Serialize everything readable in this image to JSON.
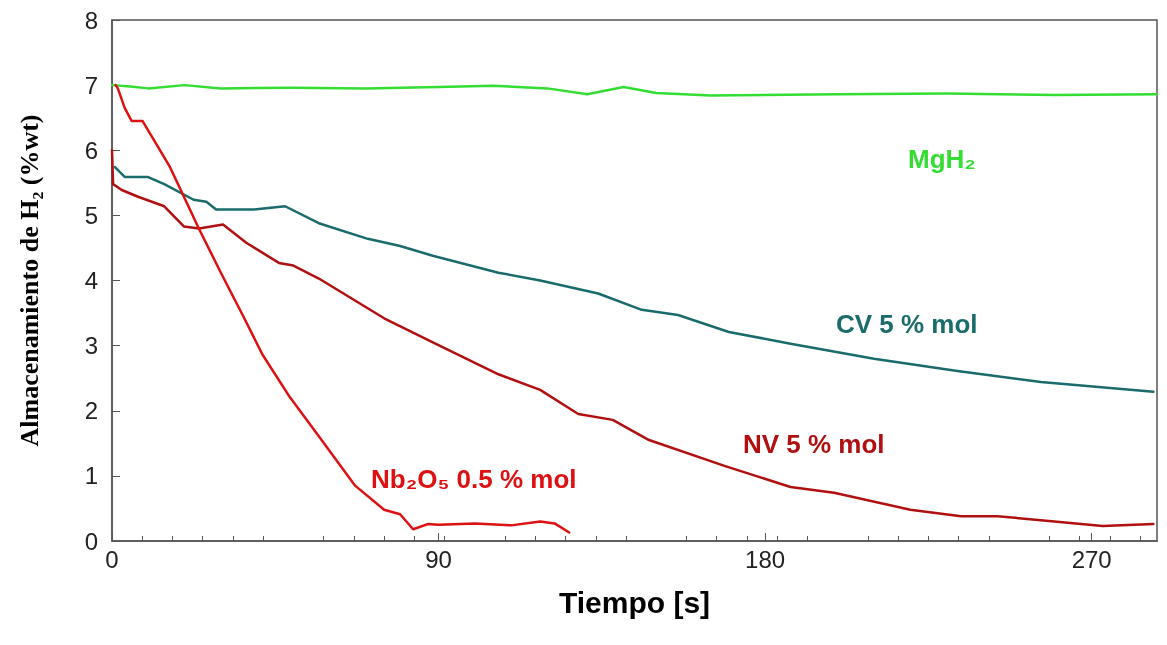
{
  "chart_data": {
    "type": "line",
    "xlabel": "Tiempo [s]",
    "ylabel": "Almacenamiento de H₂ (%wt)",
    "xlim": [
      0,
      288
    ],
    "xticks": [
      0,
      90,
      180,
      270
    ],
    "ylim": [
      0,
      8
    ],
    "yticks": [
      0,
      1,
      2,
      3,
      4,
      5,
      6,
      7,
      8
    ],
    "grid": false,
    "legend": false,
    "marker": "none",
    "line_style": "solid",
    "series": [
      {
        "name": "MgH₂",
        "color": "#33dd33",
        "x": [
          0,
          5,
          10,
          20,
          30,
          50,
          70,
          90,
          105,
          120,
          131,
          141,
          150,
          165,
          200,
          230,
          260,
          288
        ],
        "values": [
          7.0,
          6.98,
          6.95,
          7.0,
          6.95,
          6.96,
          6.95,
          6.97,
          6.99,
          6.95,
          6.86,
          6.97,
          6.88,
          6.84,
          6.86,
          6.87,
          6.85,
          6.86
        ]
      },
      {
        "name": "CV 5 % mol",
        "color": "#1a6b6b",
        "x": [
          0.8,
          3.5,
          9.8,
          14.4,
          22.5,
          26,
          28.7,
          38.8,
          47.7,
          57,
          70.5,
          79.4,
          88.4,
          106.5,
          118,
          134,
          146,
          156,
          170,
          187,
          210,
          233,
          256,
          287
        ],
        "values": [
          5.74,
          5.59,
          5.59,
          5.48,
          5.24,
          5.21,
          5.09,
          5.09,
          5.14,
          4.88,
          4.64,
          4.53,
          4.38,
          4.12,
          4.0,
          3.8,
          3.55,
          3.47,
          3.21,
          3.03,
          2.8,
          2.61,
          2.44,
          2.29
        ]
      },
      {
        "name": "NV 5 % mol",
        "color": "#b01010",
        "x": [
          0,
          0.3,
          2.7,
          7,
          14.4,
          19.8,
          24,
          30.6,
          37,
          46,
          50,
          57,
          75,
          88,
          106.5,
          118,
          128.5,
          138,
          148,
          169,
          187,
          199,
          220,
          234,
          244,
          256,
          273,
          287
        ],
        "values": [
          6.0,
          5.48,
          5.39,
          5.29,
          5.14,
          4.83,
          4.8,
          4.86,
          4.58,
          4.27,
          4.23,
          4.03,
          3.42,
          3.06,
          2.56,
          2.32,
          1.95,
          1.86,
          1.55,
          1.15,
          0.83,
          0.74,
          0.48,
          0.38,
          0.38,
          0.32,
          0.23,
          0.26
        ]
      },
      {
        "name": "Nb₂O₅ 0.5 % mol",
        "color": "#dd1111",
        "x": [
          1,
          1.6,
          3.5,
          5.4,
          8.4,
          16,
          24,
          30,
          36,
          41.5,
          49,
          57,
          67,
          75,
          79.4,
          83,
          87,
          90,
          100,
          110,
          118,
          122,
          126
        ],
        "values": [
          7.0,
          6.95,
          6.65,
          6.45,
          6.45,
          5.74,
          4.79,
          4.12,
          3.47,
          2.86,
          2.21,
          1.61,
          0.85,
          0.48,
          0.41,
          0.18,
          0.26,
          0.25,
          0.27,
          0.24,
          0.3,
          0.27,
          0.13
        ]
      }
    ]
  }
}
